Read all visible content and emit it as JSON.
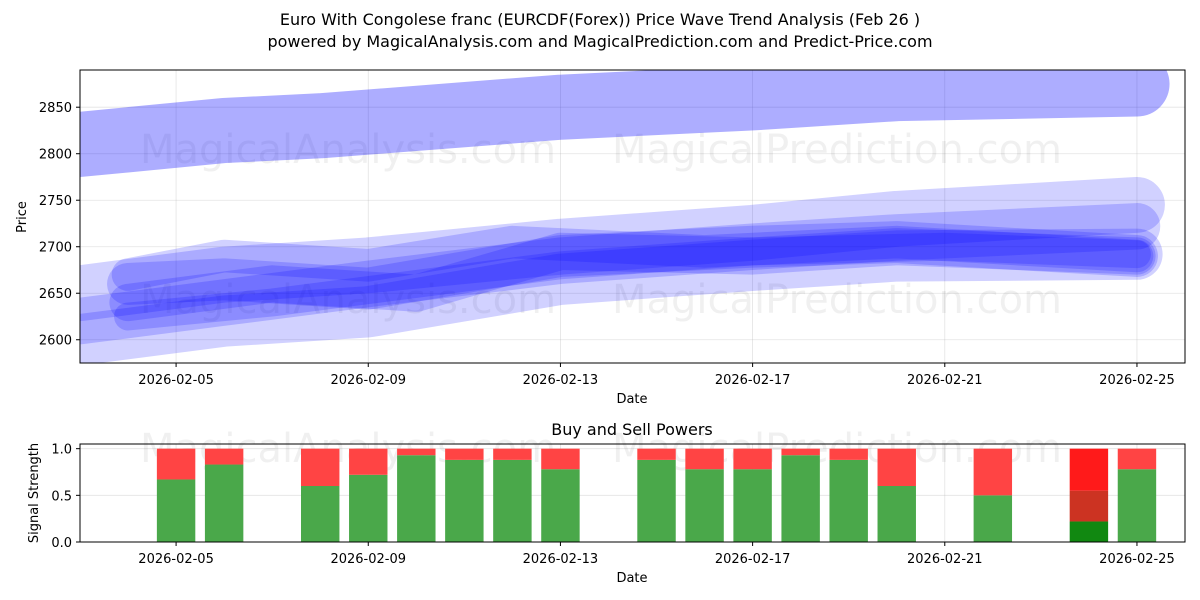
{
  "title_line1": "Euro With Congolese franc (EURCDF(Forex)) Price Wave Trend Analysis (Feb 26 )",
  "title_line2": "powered by MagicalAnalysis.com and MagicalPrediction.com and Predict-Price.com",
  "watermarks": [
    "MagicalAnalysis.com",
    "MagicalPrediction.com"
  ],
  "colors": {
    "band": "#0000ff",
    "buy": "#4aa84a",
    "sell": "#ff4444",
    "strong_buy": "#118811",
    "strong_sell": "#ff1a1a",
    "mid_sell": "#cc3322"
  },
  "chart_data": [
    {
      "type": "area",
      "name": "price-wave",
      "title": "",
      "xlabel": "Date",
      "ylabel": "Price",
      "xlim": [
        "2026-02-03",
        "2026-02-26"
      ],
      "ylim": [
        2575,
        2890
      ],
      "xticks": [
        "2026-02-05",
        "2026-02-09",
        "2026-02-13",
        "2026-02-17",
        "2026-02-21",
        "2026-02-25"
      ],
      "yticks": [
        2600,
        2650,
        2700,
        2750,
        2800,
        2850
      ],
      "grid": true,
      "series": [
        {
          "name": "upper-wave",
          "x": [
            "2026-02-03",
            "2026-02-06",
            "2026-02-08",
            "2026-02-13",
            "2026-02-17",
            "2026-02-20",
            "2026-02-25"
          ],
          "values": [
            2810,
            2825,
            2830,
            2850,
            2860,
            2870,
            2875
          ],
          "width": 70
        },
        {
          "name": "wave-2",
          "x": [
            "2026-02-03",
            "2026-02-06",
            "2026-02-09",
            "2026-02-13",
            "2026-02-17",
            "2026-02-20",
            "2026-02-25"
          ],
          "values": [
            2650,
            2670,
            2680,
            2700,
            2715,
            2730,
            2745
          ],
          "width": 60
        },
        {
          "name": "wave-3",
          "x": [
            "2026-02-03",
            "2026-02-06",
            "2026-02-09",
            "2026-02-13",
            "2026-02-17",
            "2026-02-20",
            "2026-02-25"
          ],
          "values": [
            2620,
            2640,
            2660,
            2685,
            2700,
            2710,
            2722
          ],
          "width": 50
        },
        {
          "name": "wave-4",
          "x": [
            "2026-02-03",
            "2026-02-06",
            "2026-02-09",
            "2026-02-13",
            "2026-02-17",
            "2026-02-20",
            "2026-02-25"
          ],
          "values": [
            2600,
            2620,
            2630,
            2665,
            2680,
            2690,
            2692
          ],
          "width": 55
        },
        {
          "name": "wave-5",
          "x": [
            "2026-02-04",
            "2026-02-06",
            "2026-02-09",
            "2026-02-13",
            "2026-02-17",
            "2026-02-20",
            "2026-02-25"
          ],
          "values": [
            2660,
            2665,
            2655,
            2690,
            2700,
            2705,
            2690
          ],
          "width": 45
        },
        {
          "name": "wave-6",
          "x": [
            "2026-02-04",
            "2026-02-07",
            "2026-02-10",
            "2026-02-13",
            "2026-02-17",
            "2026-02-20",
            "2026-02-25"
          ],
          "values": [
            2640,
            2660,
            2650,
            2695,
            2690,
            2700,
            2690
          ],
          "width": 40
        },
        {
          "name": "wave-7",
          "x": [
            "2026-02-04",
            "2026-02-06",
            "2026-02-09",
            "2026-02-12",
            "2026-02-16",
            "2026-02-20",
            "2026-02-25"
          ],
          "values": [
            2670,
            2690,
            2680,
            2705,
            2695,
            2705,
            2690
          ],
          "width": 35
        },
        {
          "name": "wave-8",
          "x": [
            "2026-02-04",
            "2026-02-07",
            "2026-02-10",
            "2026-02-13",
            "2026-02-17",
            "2026-02-21",
            "2026-02-25"
          ],
          "values": [
            2625,
            2640,
            2660,
            2680,
            2695,
            2700,
            2692
          ],
          "width": 30
        }
      ]
    },
    {
      "type": "bar",
      "name": "buy-sell-powers",
      "title": "Buy and Sell Powers",
      "xlabel": "Date",
      "ylabel": "Signal Strength",
      "xlim": [
        "2026-02-03",
        "2026-02-26"
      ],
      "ylim": [
        0,
        1.05
      ],
      "xticks": [
        "2026-02-05",
        "2026-02-09",
        "2026-02-13",
        "2026-02-17",
        "2026-02-21",
        "2026-02-25"
      ],
      "yticks": [
        "0.0",
        "0.5",
        "1.0"
      ],
      "grid": true,
      "categories": [
        "2026-02-05",
        "2026-02-06",
        "2026-02-08",
        "2026-02-09",
        "2026-02-10",
        "2026-02-11",
        "2026-02-12",
        "2026-02-13",
        "2026-02-15",
        "2026-02-16",
        "2026-02-17",
        "2026-02-18",
        "2026-02-19",
        "2026-02-20",
        "2026-02-22",
        "2026-02-24",
        "2026-02-25"
      ],
      "series": [
        {
          "name": "Buy",
          "values": [
            0.67,
            0.83,
            0.6,
            0.72,
            0.93,
            0.88,
            0.88,
            0.78,
            0.88,
            0.78,
            0.78,
            0.93,
            0.88,
            0.6,
            0.5,
            0.22,
            0.78
          ]
        },
        {
          "name": "Sell",
          "values": [
            0.33,
            0.17,
            0.4,
            0.28,
            0.07,
            0.12,
            0.12,
            0.22,
            0.12,
            0.22,
            0.22,
            0.07,
            0.12,
            0.4,
            0.5,
            0.78,
            0.22
          ]
        }
      ],
      "highlight": {
        "category": "2026-02-24",
        "strong_buy": 0.22,
        "mid_sell": 0.33,
        "strong_sell": 0.45
      }
    }
  ]
}
